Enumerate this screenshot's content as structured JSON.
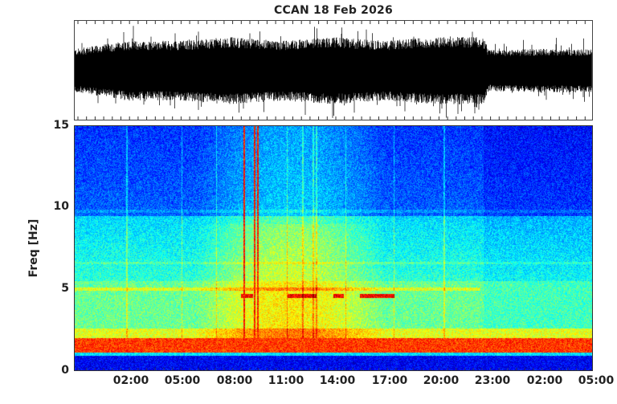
{
  "chart_data": [
    {
      "type": "line",
      "name": "seismogram",
      "title": "CCAN  18 Feb 2026",
      "xlabel": "",
      "ylabel": "",
      "y_ticks_labeled": false,
      "x_range": [
        "23:00 (17 Feb)",
        "05:00 (19 Feb)"
      ],
      "description": "Continuous seismic trace; amplitude envelope grows from ~02:00, peaks around 08:00-17:00 and 20:00-22:30, then drops sharply near 22:45",
      "envelope_relative": {
        "x_hours": [
          0,
          3,
          6,
          9,
          12,
          15,
          18,
          21,
          23.7,
          24,
          27,
          30
        ],
        "half_amplitude": [
          0.4,
          0.55,
          0.55,
          0.62,
          0.55,
          0.62,
          0.55,
          0.62,
          0.62,
          0.38,
          0.4,
          0.4
        ]
      }
    },
    {
      "type": "heatmap",
      "name": "spectrogram",
      "title": "",
      "xlabel": "",
      "ylabel": "Freq [Hz]",
      "ylim": [
        0,
        15
      ],
      "y_ticks": [
        0,
        5,
        10,
        15
      ],
      "x_ticks": [
        "02:00",
        "05:00",
        "08:00",
        "11:00",
        "14:00",
        "17:00",
        "20:00",
        "23:00",
        "02:00",
        "05:00"
      ],
      "colormap": "jet",
      "features": [
        {
          "label": "strong band",
          "freq_hz": [
            1.0,
            2.0
          ],
          "level": "high (red)"
        },
        {
          "label": "low-frequency floor",
          "freq_hz": [
            0,
            0.9
          ],
          "level": "low (dark blue)"
        },
        {
          "label": "tremor lines",
          "freq_hz": 4.6,
          "time_range": [
            "09:00",
            "17:00"
          ],
          "level": "high (red-orange)"
        },
        {
          "label": "broadband activity",
          "time_range": [
            "08:00",
            "17:00"
          ],
          "freq_hz": [
            2,
            15
          ],
          "level": "medium (green-yellow)"
        },
        {
          "label": "vertical transients",
          "times": [
            "09:40",
            "10:20",
            "13:10",
            "13:50"
          ]
        }
      ]
    }
  ],
  "header": {
    "title": "CCAN  18 Feb 2026"
  },
  "axes": {
    "ylabel": "Freq [Hz]",
    "y_ticks": [
      "15",
      "10",
      "5",
      "0"
    ],
    "x_ticks": [
      "02:00",
      "05:00",
      "08:00",
      "11:00",
      "14:00",
      "17:00",
      "20:00",
      "23:00",
      "02:00",
      "05:00"
    ]
  }
}
